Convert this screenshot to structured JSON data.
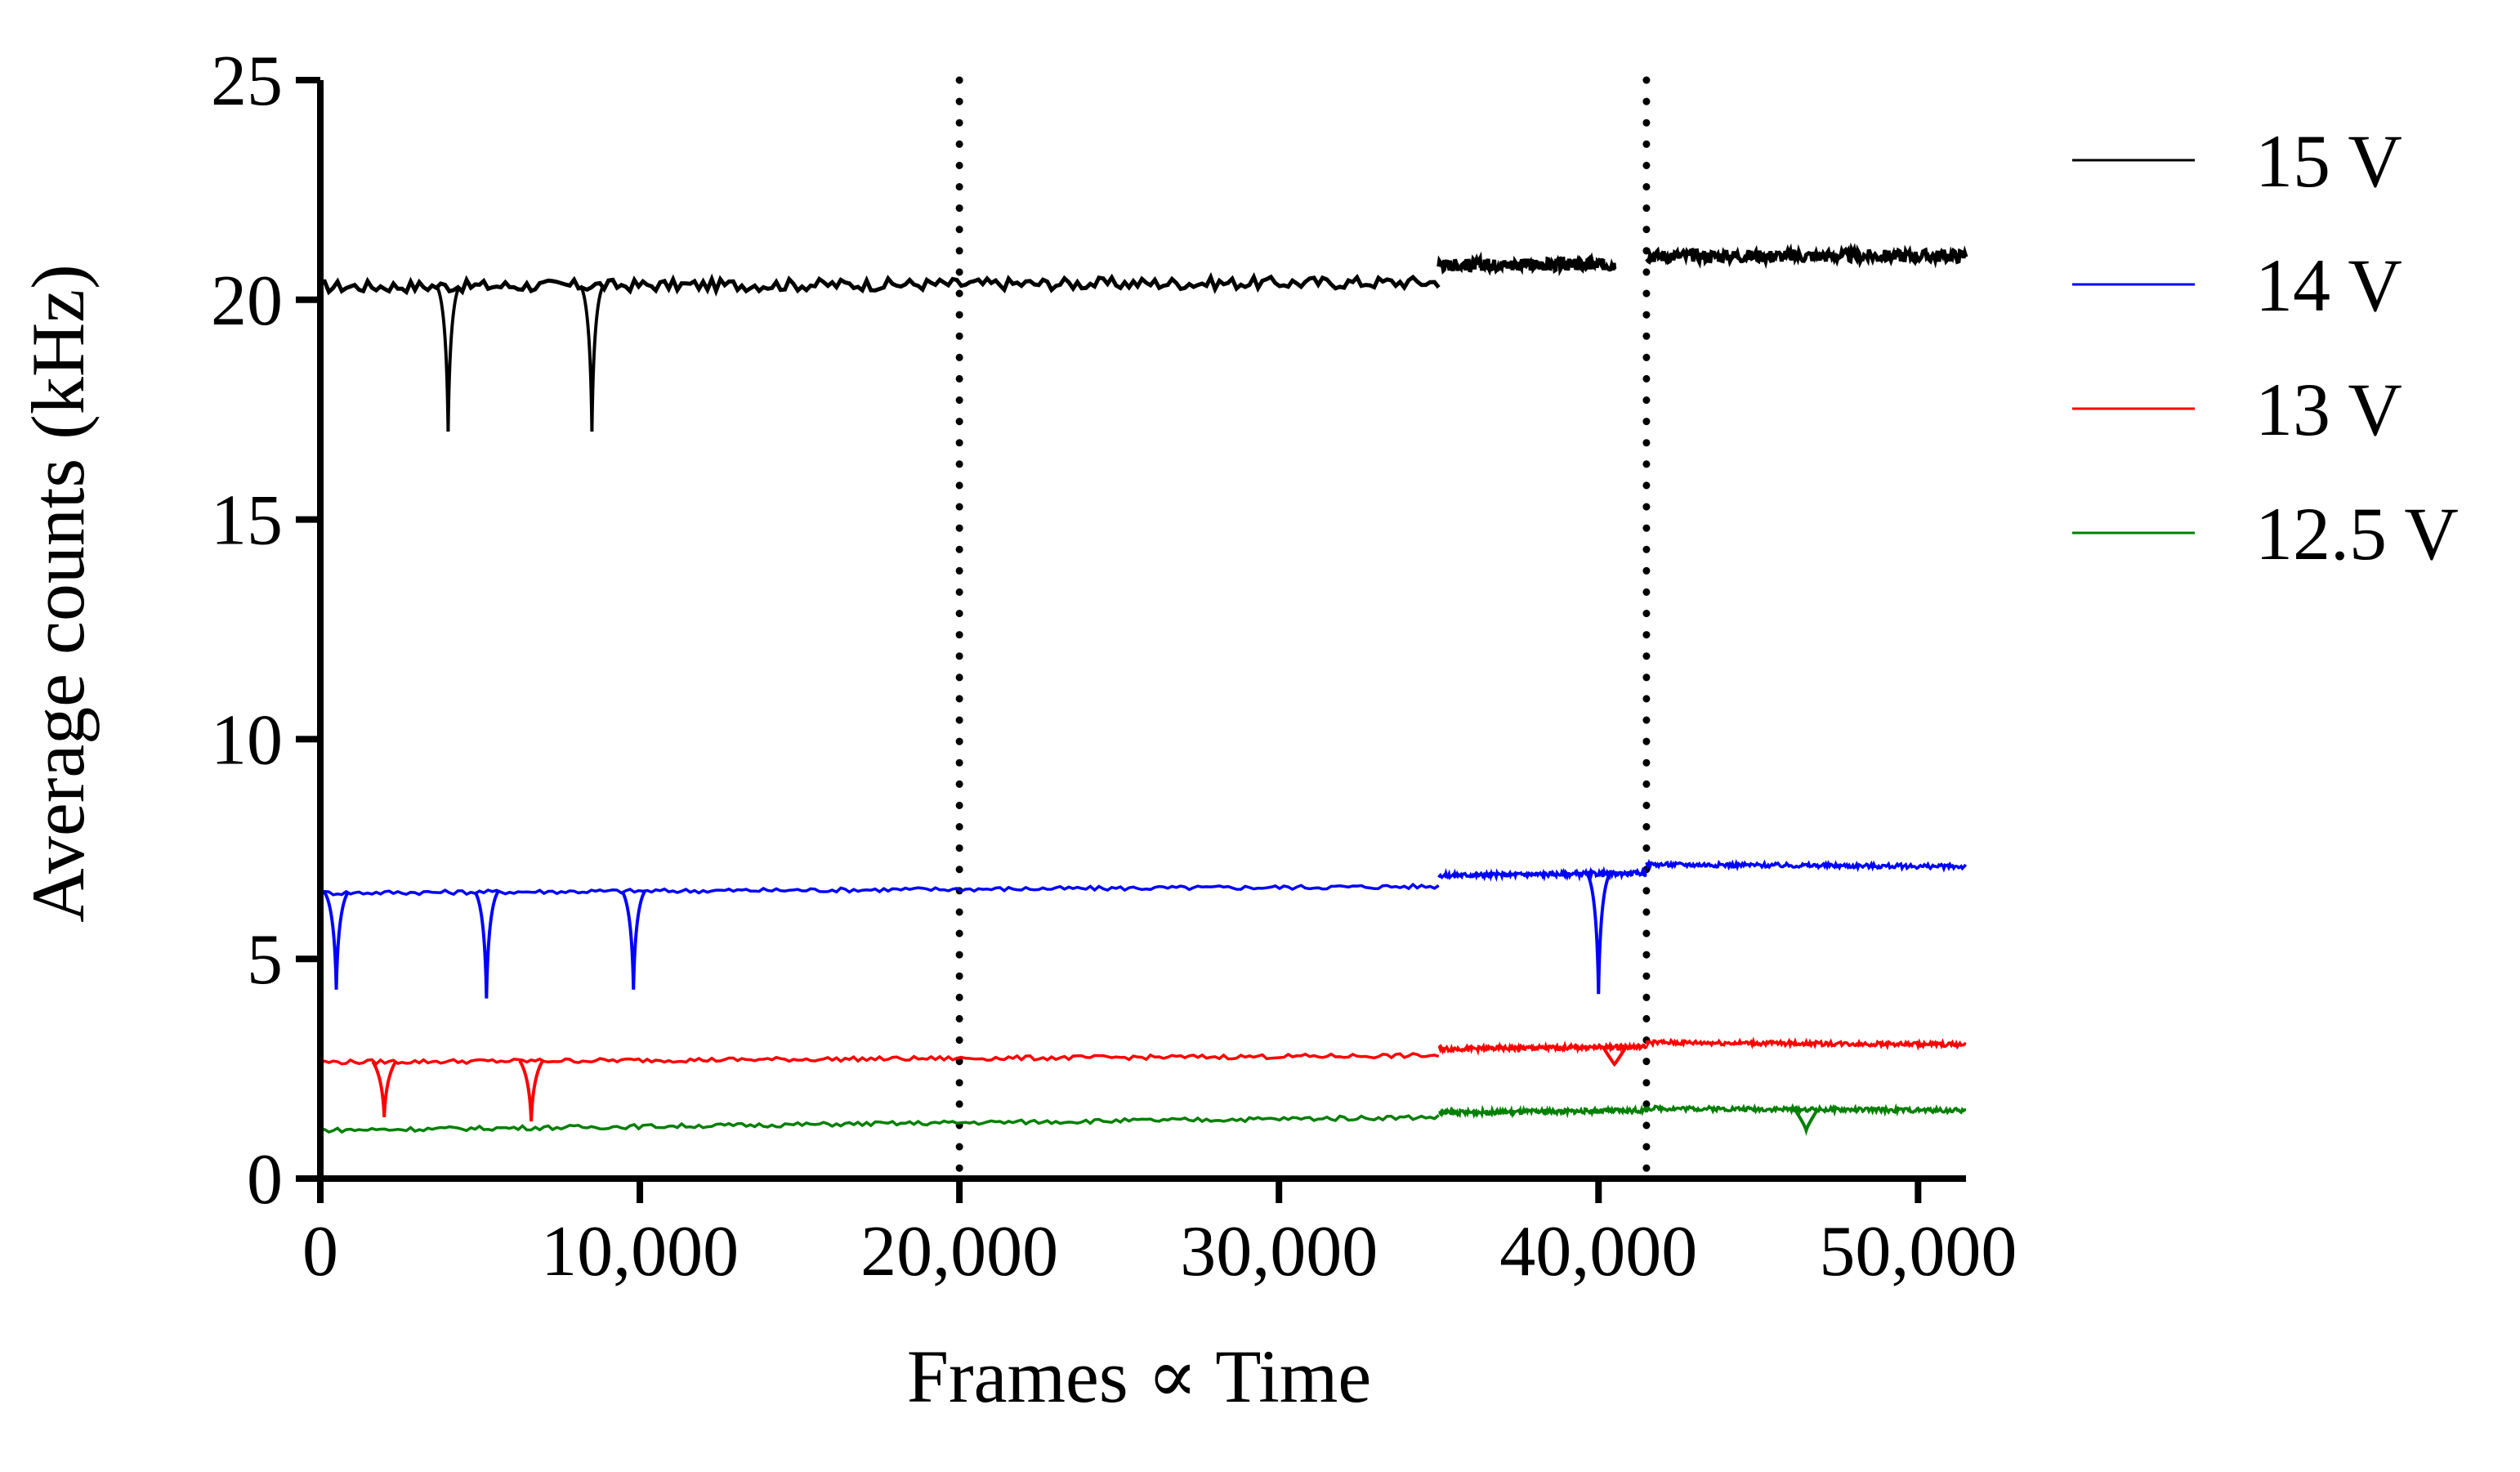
{
  "chart_data": {
    "type": "line",
    "title": "",
    "xlabel": "Frames ∝ Time",
    "ylabel": "Average counts (kHz)",
    "xlim": [
      0,
      51500
    ],
    "ylim": [
      0,
      25
    ],
    "x_ticks": [
      0,
      10000,
      20000,
      30000,
      40000,
      50000
    ],
    "x_tick_labels": [
      "0",
      "10,000",
      "20,000",
      "30,000",
      "40,000",
      "50,000"
    ],
    "y_ticks": [
      0,
      5,
      10,
      15,
      20,
      25
    ],
    "y_tick_labels": [
      "0",
      "5",
      "10",
      "15",
      "20",
      "25"
    ],
    "grid": false,
    "legend_position": "right",
    "vertical_dotted_lines": [
      20000,
      41500
    ],
    "series": [
      {
        "name": "15 V",
        "color": "#000000",
        "segments": [
          {
            "x": [
              0,
              35000
            ],
            "y": [
              20.3,
              20.4
            ]
          },
          {
            "x": [
              35000,
              40500
            ],
            "y": [
              20.8,
              20.8
            ]
          },
          {
            "x": [
              41500,
              51500
            ],
            "y": [
              21.0,
              21.0
            ]
          }
        ],
        "dips": [
          {
            "x": 4000,
            "y": 17.0
          },
          {
            "x": 8500,
            "y": 17.0
          }
        ]
      },
      {
        "name": "14 V",
        "color": "#0000ff",
        "segments": [
          {
            "x": [
              0,
              35000
            ],
            "y": [
              6.5,
              6.65
            ]
          },
          {
            "x": [
              35000,
              41500
            ],
            "y": [
              6.9,
              6.95
            ]
          },
          {
            "x": [
              41500,
              51500
            ],
            "y": [
              7.15,
              7.1
            ]
          }
        ],
        "dips": [
          {
            "x": 500,
            "y": 4.3
          },
          {
            "x": 5200,
            "y": 4.1
          },
          {
            "x": 9800,
            "y": 4.3
          },
          {
            "x": 40000,
            "y": 4.2
          }
        ]
      },
      {
        "name": "13 V",
        "color": "#ff0000",
        "segments": [
          {
            "x": [
              0,
              35000
            ],
            "y": [
              2.65,
              2.8
            ]
          },
          {
            "x": [
              35000,
              41500
            ],
            "y": [
              2.95,
              3.0
            ]
          },
          {
            "x": [
              41500,
              51500
            ],
            "y": [
              3.1,
              3.05
            ]
          }
        ],
        "dips": [
          {
            "x": 2000,
            "y": 1.4
          },
          {
            "x": 6600,
            "y": 1.3
          },
          {
            "x": 40500,
            "y": 2.6
          }
        ]
      },
      {
        "name": "12.5 V",
        "color": "#008000",
        "segments": [
          {
            "x": [
              0,
              35000
            ],
            "y": [
              1.1,
              1.4
            ]
          },
          {
            "x": [
              35000,
              41500
            ],
            "y": [
              1.5,
              1.55
            ]
          },
          {
            "x": [
              41500,
              51500
            ],
            "y": [
              1.6,
              1.55
            ]
          }
        ],
        "dips": [
          {
            "x": 46500,
            "y": 1.1
          }
        ]
      }
    ]
  }
}
